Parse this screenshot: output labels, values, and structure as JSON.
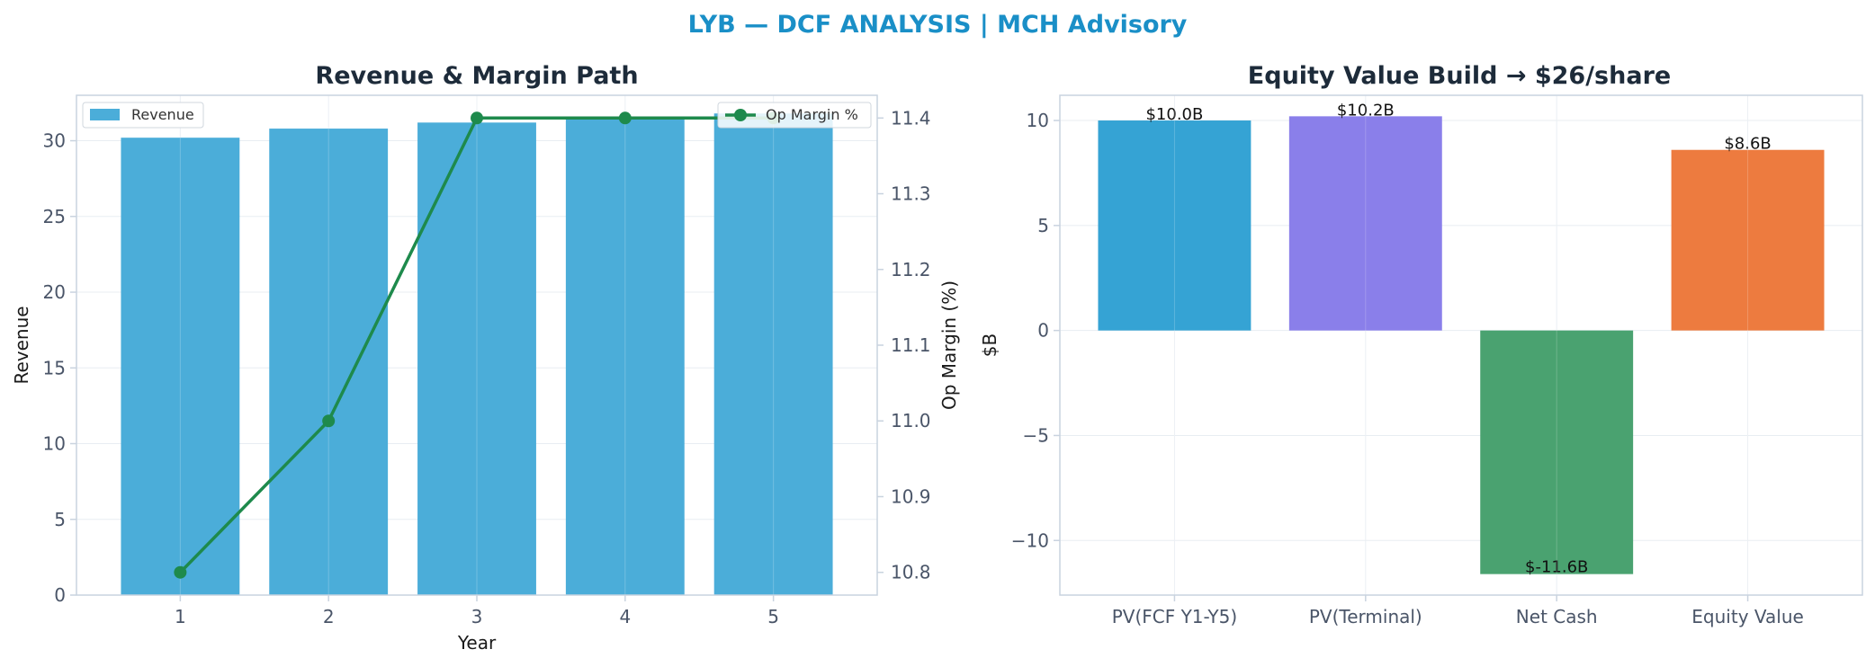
{
  "suptitle": "LYB — DCF ANALYSIS | MCH Advisory",
  "colors": {
    "suptitle": "#1a8fc7",
    "revenue_bar": "#4badd9",
    "op_margin_line": "#1e8a4c",
    "pv_fcf": "#35a3d4",
    "pv_terminal": "#8a7fea",
    "net_cash": "#4aa270",
    "equity_value": "#ed7b3f",
    "axis": "#c9d3df",
    "grid": "#e8edf2"
  },
  "chart_data": [
    {
      "type": "bar",
      "title": "Revenue & Margin Path",
      "xlabel": "Year",
      "ylabel": "Revenue",
      "y2label": "Op Margin (%)",
      "categories": [
        "1",
        "2",
        "3",
        "4",
        "5"
      ],
      "ylim": [
        0,
        33
      ],
      "yticks": [
        "0",
        "5",
        "10",
        "15",
        "20",
        "25",
        "30"
      ],
      "y2lim": [
        10.77,
        11.43
      ],
      "y2ticks": [
        "10.8",
        "10.9",
        "11.0",
        "11.1",
        "11.2",
        "11.3",
        "11.4"
      ],
      "grid": true,
      "series": [
        {
          "name": "Revenue",
          "type": "bar",
          "axis": "left",
          "values": [
            30.2,
            30.8,
            31.2,
            31.5,
            31.8
          ]
        },
        {
          "name": "Op Margin %",
          "type": "line",
          "axis": "right",
          "values": [
            10.8,
            11.0,
            11.4,
            11.4,
            11.4
          ]
        }
      ],
      "legend": {
        "revenue_position": "top-left",
        "margin_position": "top-right"
      }
    },
    {
      "type": "bar",
      "title": "Equity Value Build → $26/share",
      "xlabel": "",
      "ylabel": "$B",
      "categories": [
        "PV(FCF Y1-Y5)",
        "PV(Terminal)",
        "Net Cash",
        "Equity Value"
      ],
      "values": [
        10.0,
        10.2,
        -11.6,
        8.6
      ],
      "labels": [
        "$10.0B",
        "$10.2B",
        "$-11.6B",
        "$8.6B"
      ],
      "ylim": [
        -12.6,
        11.2
      ],
      "yticks": [
        "−10",
        "−5",
        "0",
        "5",
        "10"
      ],
      "grid": true
    }
  ]
}
